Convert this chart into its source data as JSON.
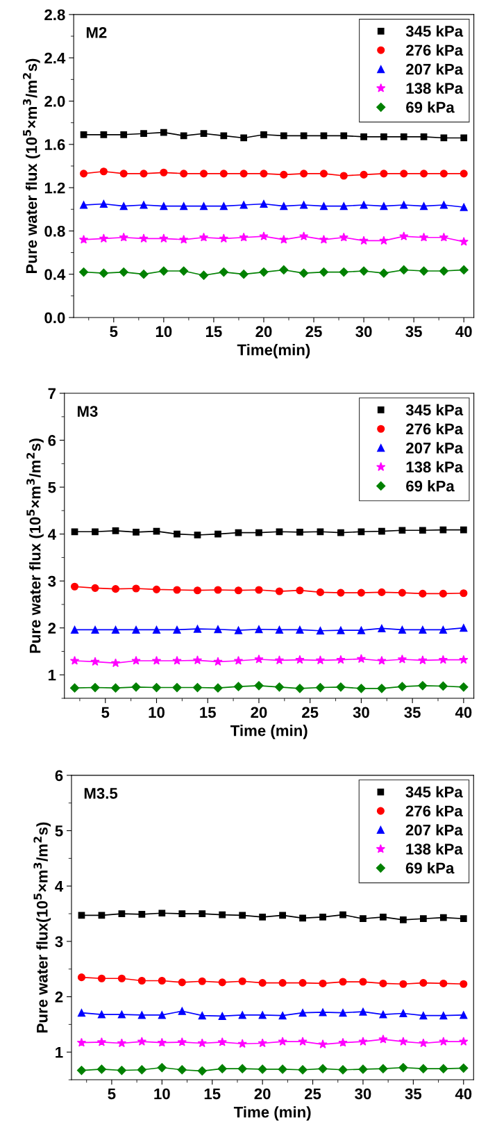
{
  "chart_data": [
    {
      "type": "line",
      "annotations": [
        "M2"
      ],
      "xlabel": "Time(min)",
      "ylabel": "Pure water flux (10$^{5}$×m$^{3}$/m$^{2}$s)",
      "x": [
        2,
        4,
        6,
        8,
        10,
        12,
        14,
        16,
        18,
        20,
        22,
        24,
        26,
        28,
        30,
        32,
        34,
        36,
        38,
        40
      ],
      "xlim": [
        1,
        41
      ],
      "xticks": [
        5,
        10,
        15,
        20,
        25,
        30,
        35,
        40
      ],
      "ylim": [
        0,
        2.8
      ],
      "yticks": [
        {
          "value": 0,
          "label": "0.0"
        },
        0.4,
        0.8,
        1.2,
        1.6,
        {
          "value": 2,
          "label": "2.0"
        },
        2.4,
        2.8
      ],
      "grid": false,
      "legend": "top right",
      "line_style": "solid",
      "series": [
        {
          "name": "345 kPa",
          "color": "#000000",
          "marker": "square",
          "values": [
            1.69,
            1.69,
            1.69,
            1.7,
            1.71,
            1.68,
            1.7,
            1.68,
            1.66,
            1.69,
            1.68,
            1.68,
            1.68,
            1.68,
            1.67,
            1.67,
            1.67,
            1.67,
            1.66,
            1.66
          ]
        },
        {
          "name": "276 kPa",
          "color": "#ff0000",
          "marker": "circle",
          "values": [
            1.33,
            1.35,
            1.33,
            1.33,
            1.34,
            1.33,
            1.33,
            1.33,
            1.33,
            1.33,
            1.32,
            1.33,
            1.33,
            1.31,
            1.32,
            1.33,
            1.33,
            1.33,
            1.33,
            1.33
          ]
        },
        {
          "name": "207 kPa",
          "color": "#0000ff",
          "marker": "triangle",
          "values": [
            1.04,
            1.05,
            1.03,
            1.04,
            1.03,
            1.03,
            1.03,
            1.03,
            1.04,
            1.05,
            1.03,
            1.04,
            1.03,
            1.03,
            1.04,
            1.03,
            1.04,
            1.03,
            1.04,
            1.02
          ]
        },
        {
          "name": "138 kPa",
          "color": "#ff00ff",
          "marker": "star",
          "values": [
            0.72,
            0.73,
            0.74,
            0.73,
            0.73,
            0.72,
            0.74,
            0.73,
            0.74,
            0.75,
            0.72,
            0.75,
            0.72,
            0.74,
            0.71,
            0.71,
            0.75,
            0.74,
            0.74,
            0.7
          ]
        },
        {
          "name": "69 kPa",
          "color": "#008000",
          "marker": "diamond",
          "values": [
            0.42,
            0.41,
            0.42,
            0.4,
            0.43,
            0.43,
            0.39,
            0.42,
            0.4,
            0.42,
            0.44,
            0.41,
            0.42,
            0.42,
            0.43,
            0.41,
            0.44,
            0.43,
            0.43,
            0.44
          ]
        }
      ]
    },
    {
      "type": "line",
      "annotations": [
        "M3"
      ],
      "xlabel": "Time (min)",
      "ylabel": "Pure water flux (10$^{5}$×m$^{3}$/m$^{2}$s)",
      "x": [
        2,
        4,
        6,
        8,
        10,
        12,
        14,
        16,
        18,
        20,
        22,
        24,
        26,
        28,
        30,
        32,
        34,
        36,
        38,
        40
      ],
      "xlim": [
        1,
        41
      ],
      "xticks": [
        5,
        10,
        15,
        20,
        25,
        30,
        35,
        40
      ],
      "ylim": [
        0.5,
        7
      ],
      "yticks": [
        1,
        2,
        3,
        4,
        5,
        6,
        7
      ],
      "grid": false,
      "legend": "top right",
      "line_style": "solid",
      "series": [
        {
          "name": "345 kPa",
          "color": "#000000",
          "marker": "square",
          "values": [
            4.05,
            4.05,
            4.07,
            4.04,
            4.06,
            4.0,
            3.98,
            4.0,
            4.03,
            4.03,
            4.05,
            4.04,
            4.05,
            4.03,
            4.05,
            4.06,
            4.08,
            4.08,
            4.09,
            4.09
          ]
        },
        {
          "name": "276 kPa",
          "color": "#ff0000",
          "marker": "circle",
          "values": [
            2.88,
            2.85,
            2.83,
            2.84,
            2.82,
            2.81,
            2.8,
            2.81,
            2.8,
            2.81,
            2.78,
            2.8,
            2.76,
            2.75,
            2.75,
            2.76,
            2.75,
            2.73,
            2.73,
            2.74
          ]
        },
        {
          "name": "207 kPa",
          "color": "#0000ff",
          "marker": "triangle",
          "values": [
            1.96,
            1.96,
            1.96,
            1.96,
            1.96,
            1.96,
            1.98,
            1.97,
            1.95,
            1.97,
            1.96,
            1.96,
            1.94,
            1.95,
            1.95,
            1.99,
            1.96,
            1.96,
            1.96,
            2.0
          ]
        },
        {
          "name": "138 kPa",
          "color": "#ff00ff",
          "marker": "star",
          "values": [
            1.3,
            1.28,
            1.25,
            1.3,
            1.3,
            1.3,
            1.31,
            1.28,
            1.3,
            1.33,
            1.31,
            1.32,
            1.31,
            1.32,
            1.34,
            1.3,
            1.33,
            1.31,
            1.32,
            1.32
          ]
        },
        {
          "name": "69 kPa",
          "color": "#008000",
          "marker": "diamond",
          "values": [
            0.72,
            0.73,
            0.72,
            0.74,
            0.73,
            0.73,
            0.73,
            0.72,
            0.75,
            0.77,
            0.74,
            0.71,
            0.73,
            0.74,
            0.71,
            0.71,
            0.75,
            0.77,
            0.76,
            0.74
          ]
        }
      ]
    },
    {
      "type": "line",
      "annotations": [
        "M3.5"
      ],
      "xlabel": "Time (min)",
      "ylabel": "Pure water flux(10$^{5}$×m$^{3}$/m$^{2}$s)",
      "x": [
        2,
        4,
        6,
        8,
        10,
        12,
        14,
        16,
        18,
        20,
        22,
        24,
        26,
        28,
        30,
        32,
        34,
        36,
        38,
        40
      ],
      "xlim": [
        1,
        41
      ],
      "xticks": [
        5,
        10,
        15,
        20,
        25,
        30,
        35,
        40
      ],
      "ylim": [
        0.5,
        6
      ],
      "yticks": [
        1,
        2,
        3,
        4,
        5,
        6
      ],
      "grid": false,
      "legend": "top right",
      "line_style": "solid",
      "series": [
        {
          "name": "345 kPa",
          "color": "#000000",
          "marker": "square",
          "values": [
            3.47,
            3.47,
            3.5,
            3.49,
            3.51,
            3.5,
            3.5,
            3.48,
            3.47,
            3.44,
            3.47,
            3.42,
            3.44,
            3.48,
            3.41,
            3.44,
            3.39,
            3.41,
            3.43,
            3.41
          ]
        },
        {
          "name": "276 kPa",
          "color": "#ff0000",
          "marker": "circle",
          "values": [
            2.35,
            2.33,
            2.33,
            2.29,
            2.29,
            2.26,
            2.28,
            2.26,
            2.28,
            2.25,
            2.25,
            2.25,
            2.24,
            2.27,
            2.27,
            2.24,
            2.23,
            2.25,
            2.24,
            2.23
          ]
        },
        {
          "name": "207 kPa",
          "color": "#0000ff",
          "marker": "triangle",
          "values": [
            1.71,
            1.68,
            1.68,
            1.67,
            1.67,
            1.74,
            1.66,
            1.65,
            1.67,
            1.67,
            1.66,
            1.71,
            1.72,
            1.71,
            1.73,
            1.68,
            1.7,
            1.66,
            1.66,
            1.67
          ]
        },
        {
          "name": "138 kPa",
          "color": "#ff00ff",
          "marker": "star",
          "values": [
            1.17,
            1.18,
            1.16,
            1.19,
            1.17,
            1.18,
            1.16,
            1.18,
            1.15,
            1.16,
            1.19,
            1.19,
            1.14,
            1.17,
            1.19,
            1.23,
            1.19,
            1.16,
            1.19,
            1.19
          ]
        },
        {
          "name": "69 kPa",
          "color": "#008000",
          "marker": "diamond",
          "values": [
            0.67,
            0.69,
            0.67,
            0.68,
            0.72,
            0.68,
            0.66,
            0.7,
            0.7,
            0.69,
            0.69,
            0.68,
            0.7,
            0.68,
            0.69,
            0.7,
            0.72,
            0.7,
            0.7,
            0.71
          ]
        }
      ]
    }
  ]
}
